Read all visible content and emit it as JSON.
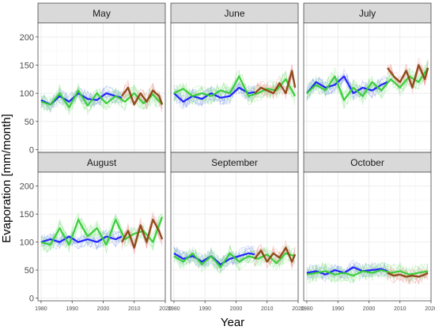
{
  "chart_data": {
    "type": "line",
    "layout": "facet-grid 2x3",
    "ylabel": "Evaporation [mm/month]",
    "xlabel": "Year",
    "xlim": [
      1979,
      2020
    ],
    "ylim": [
      -5,
      225
    ],
    "x_ticks": [
      1980,
      1990,
      2000,
      2010,
      2020
    ],
    "y_ticks": [
      0,
      50,
      100,
      150,
      200
    ],
    "grid": true,
    "colors": {
      "blue": "#1a1aff",
      "green": "#33cc33",
      "brown": "#8b4513",
      "ensemble_blue": "#8fa8e8",
      "ensemble_green": "#9be69b",
      "ensemble_red": "#f0a0a0",
      "strip_fill": "#d9d9d9",
      "grid": "#ebebeb"
    },
    "panels": [
      {
        "title": "May",
        "series": [
          {
            "color_key": "blue",
            "x": [
              1980,
              1983,
              1986,
              1989,
              1992,
              1995,
              1998,
              2001,
              2004,
              2006
            ],
            "values": [
              88,
              80,
              95,
              85,
              100,
              90,
              88,
              100,
              95,
              92
            ]
          },
          {
            "color_key": "green",
            "x": [
              1980,
              1983,
              1986,
              1989,
              1992,
              1995,
              1998,
              2001,
              2004,
              2007,
              2010,
              2013,
              2016,
              2019
            ],
            "values": [
              85,
              80,
              100,
              75,
              105,
              78,
              100,
              82,
              95,
              85,
              100,
              82,
              98,
              80
            ]
          },
          {
            "color_key": "brown",
            "x": [
              2006,
              2008,
              2010,
              2012,
              2014,
              2016,
              2018,
              2019
            ],
            "values": [
              95,
              110,
              80,
              100,
              85,
              105,
              95,
              80
            ]
          }
        ]
      },
      {
        "title": "June",
        "series": [
          {
            "color_key": "blue",
            "x": [
              1980,
              1983,
              1986,
              1989,
              1992,
              1995,
              1998,
              2001,
              2004,
              2006
            ],
            "values": [
              100,
              85,
              95,
              90,
              100,
              92,
              95,
              110,
              100,
              102
            ]
          },
          {
            "color_key": "green",
            "x": [
              1980,
              1983,
              1986,
              1989,
              1992,
              1995,
              1998,
              2001,
              2004,
              2007,
              2010,
              2013,
              2016,
              2019
            ],
            "values": [
              100,
              108,
              95,
              100,
              95,
              105,
              100,
              130,
              95,
              100,
              108,
              105,
              125,
              95
            ]
          },
          {
            "color_key": "brown",
            "x": [
              2006,
              2008,
              2010,
              2012,
              2014,
              2016,
              2018,
              2019
            ],
            "values": [
              100,
              110,
              105,
              100,
              118,
              100,
              140,
              110
            ]
          }
        ]
      },
      {
        "title": "July",
        "series": [
          {
            "color_key": "blue",
            "x": [
              1980,
              1983,
              1986,
              1989,
              1992,
              1995,
              1998,
              2001,
              2004,
              2006
            ],
            "values": [
              100,
              120,
              110,
              115,
              130,
              100,
              110,
              105,
              115,
              120
            ]
          },
          {
            "color_key": "green",
            "x": [
              1980,
              1983,
              1986,
              1989,
              1992,
              1995,
              1998,
              2001,
              2004,
              2007,
              2010,
              2013,
              2016,
              2019
            ],
            "values": [
              100,
              115,
              105,
              130,
              88,
              110,
              95,
              120,
              105,
              125,
              110,
              130,
              120,
              145
            ]
          },
          {
            "color_key": "brown",
            "x": [
              2006,
              2008,
              2010,
              2012,
              2014,
              2016,
              2018,
              2019
            ],
            "values": [
              145,
              130,
              120,
              140,
              110,
              150,
              125,
              145
            ]
          }
        ]
      },
      {
        "title": "August",
        "series": [
          {
            "color_key": "blue",
            "x": [
              1980,
              1983,
              1986,
              1989,
              1992,
              1995,
              1998,
              2001,
              2004,
              2006
            ],
            "values": [
              100,
              105,
              100,
              110,
              100,
              105,
              100,
              110,
              105,
              110
            ]
          },
          {
            "color_key": "green",
            "x": [
              1980,
              1983,
              1986,
              1989,
              1992,
              1995,
              1998,
              2001,
              2004,
              2007,
              2010,
              2013,
              2016,
              2019
            ],
            "values": [
              100,
              95,
              125,
              95,
              140,
              110,
              125,
              95,
              140,
              105,
              115,
              120,
              100,
              145
            ]
          },
          {
            "color_key": "brown",
            "x": [
              2006,
              2008,
              2010,
              2012,
              2014,
              2016,
              2018,
              2019
            ],
            "values": [
              100,
              120,
              90,
              130,
              100,
              140,
              120,
              105
            ]
          }
        ]
      },
      {
        "title": "September",
        "series": [
          {
            "color_key": "blue",
            "x": [
              1980,
              1983,
              1986,
              1989,
              1992,
              1995,
              1998,
              2001,
              2004,
              2006
            ],
            "values": [
              80,
              70,
              75,
              65,
              75,
              60,
              70,
              75,
              80,
              78
            ]
          },
          {
            "color_key": "green",
            "x": [
              1980,
              1983,
              1986,
              1989,
              1992,
              1995,
              1998,
              2001,
              2004,
              2007,
              2010,
              2013,
              2016,
              2019
            ],
            "values": [
              75,
              65,
              80,
              60,
              75,
              55,
              80,
              65,
              75,
              70,
              78,
              62,
              80,
              75
            ]
          },
          {
            "color_key": "brown",
            "x": [
              2006,
              2008,
              2010,
              2012,
              2014,
              2016,
              2018,
              2019
            ],
            "values": [
              70,
              85,
              65,
              80,
              72,
              90,
              65,
              78
            ]
          }
        ]
      },
      {
        "title": "October",
        "series": [
          {
            "color_key": "blue",
            "x": [
              1980,
              1983,
              1986,
              1989,
              1992,
              1995,
              1998,
              2001,
              2004,
              2006
            ],
            "values": [
              45,
              48,
              42,
              50,
              45,
              55,
              48,
              50,
              52,
              48
            ]
          },
          {
            "color_key": "green",
            "x": [
              1980,
              1983,
              1986,
              1989,
              1992,
              1995,
              1998,
              2001,
              2004,
              2007,
              2010,
              2013,
              2016,
              2019
            ],
            "values": [
              42,
              45,
              48,
              42,
              45,
              40,
              48,
              45,
              50,
              45,
              48,
              42,
              45,
              48
            ]
          },
          {
            "color_key": "brown",
            "x": [
              2006,
              2008,
              2010,
              2012,
              2014,
              2016,
              2018,
              2019
            ],
            "values": [
              45,
              40,
              42,
              38,
              40,
              38,
              42,
              45
            ]
          }
        ]
      }
    ]
  }
}
